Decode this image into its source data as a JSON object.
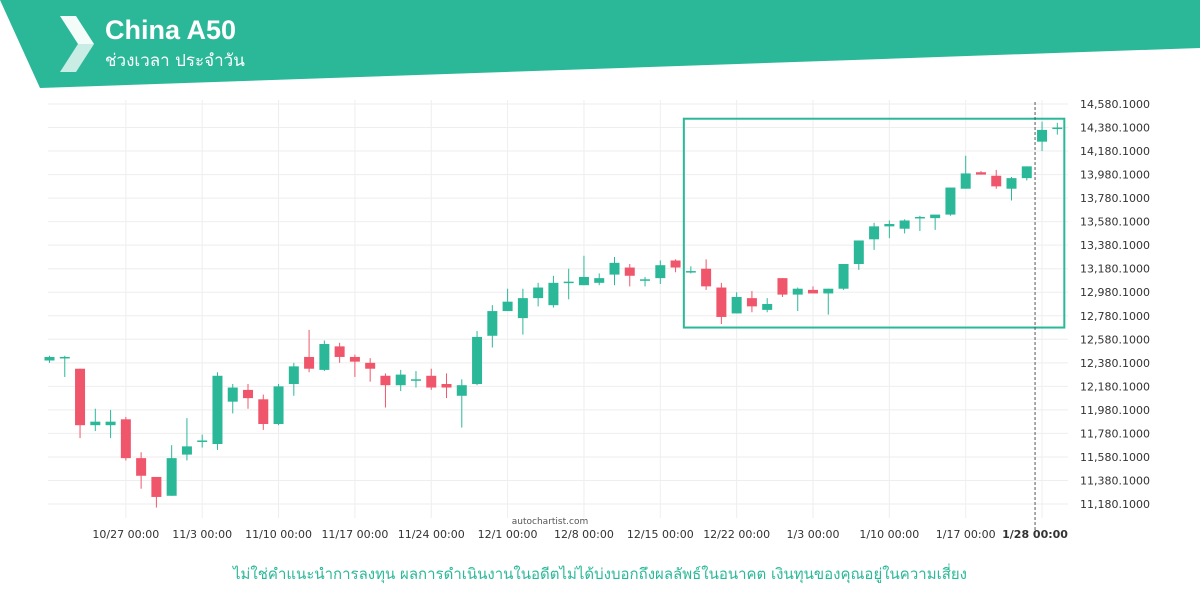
{
  "header": {
    "title": "China A50",
    "subtitle": "ช่วงเวลา ประจำวัน",
    "logo_icon": "autochartist-logo-icon"
  },
  "disclaimer": "ไม่ใช่คำแนะนำการลงทุน ผลการดำเนินงานในอดีตไม่ได้บ่งบอกถึงผลลัพธ์ในอนาคต เงินทุนของคุณอยู่ในความเสี่ยง",
  "watermark": "autochartist.com",
  "colors": {
    "accent": "#2bb899",
    "up": "#2bb899",
    "down": "#f0566b",
    "grid": "#eeeeee",
    "pattern_box": "#2bb899"
  },
  "chart_data": {
    "type": "candlestick",
    "x_tick_labels": [
      "10/27 00:00",
      "11/3 00:00",
      "11/10 00:00",
      "11/17 00:00",
      "11/24 00:00",
      "12/1 00:00",
      "12/8 00:00",
      "12/15 00:00",
      "12/22 00:00",
      "1/3 00:00",
      "1/10 00:00",
      "1/17 00:00",
      "1/28 00:00"
    ],
    "x_tick_bar_index": [
      5,
      10,
      15,
      20,
      25,
      30,
      35,
      40,
      45,
      50,
      55,
      60,
      65
    ],
    "highlighted_x_tick": "1/28 00:00",
    "y_tick_labels": [
      "14,580.1000",
      "14,380.1000",
      "14,180.1000",
      "13,980.1000",
      "13,780.1000",
      "13,580.1000",
      "13,380.1000",
      "13,180.1000",
      "12,980.1000",
      "12,780.1000",
      "12,580.1000",
      "12,380.1000",
      "12,180.1000",
      "11,980.1000",
      "11,780.1000",
      "11,580.1000",
      "11,380.1000",
      "11,180.1000"
    ],
    "ylim": [
      11120,
      14600
    ],
    "current_bar_index": 65,
    "pattern_box": {
      "bar_start": 42,
      "bar_end": 66,
      "price_low": 12680,
      "price_high": 14455
    },
    "candles": [
      {
        "o": 12400,
        "h": 12440,
        "l": 12380,
        "c": 12430
      },
      {
        "o": 12430,
        "h": 12440,
        "l": 12260,
        "c": 12430
      },
      {
        "o": 12330,
        "h": 12330,
        "l": 11740,
        "c": 11850
      },
      {
        "o": 11850,
        "h": 11990,
        "l": 11800,
        "c": 11880
      },
      {
        "o": 11850,
        "h": 11980,
        "l": 11740,
        "c": 11880
      },
      {
        "o": 11900,
        "h": 11920,
        "l": 11550,
        "c": 11570
      },
      {
        "o": 11570,
        "h": 11620,
        "l": 11310,
        "c": 11420
      },
      {
        "o": 11410,
        "h": 11410,
        "l": 11150,
        "c": 11240
      },
      {
        "o": 11250,
        "h": 11680,
        "l": 11250,
        "c": 11570
      },
      {
        "o": 11600,
        "h": 11910,
        "l": 11550,
        "c": 11670
      },
      {
        "o": 11720,
        "h": 11770,
        "l": 11660,
        "c": 11720
      },
      {
        "o": 11690,
        "h": 12300,
        "l": 11640,
        "c": 12270
      },
      {
        "o": 12050,
        "h": 12200,
        "l": 11950,
        "c": 12170
      },
      {
        "o": 12150,
        "h": 12200,
        "l": 11990,
        "c": 12080
      },
      {
        "o": 12070,
        "h": 12110,
        "l": 11810,
        "c": 11860
      },
      {
        "o": 11860,
        "h": 12200,
        "l": 11850,
        "c": 12180
      },
      {
        "o": 12200,
        "h": 12380,
        "l": 12100,
        "c": 12350
      },
      {
        "o": 12430,
        "h": 12660,
        "l": 12300,
        "c": 12330
      },
      {
        "o": 12320,
        "h": 12570,
        "l": 12310,
        "c": 12540
      },
      {
        "o": 12520,
        "h": 12550,
        "l": 12380,
        "c": 12430
      },
      {
        "o": 12430,
        "h": 12450,
        "l": 12260,
        "c": 12390
      },
      {
        "o": 12380,
        "h": 12420,
        "l": 12220,
        "c": 12330
      },
      {
        "o": 12270,
        "h": 12290,
        "l": 12000,
        "c": 12190
      },
      {
        "o": 12190,
        "h": 12320,
        "l": 12140,
        "c": 12280
      },
      {
        "o": 12240,
        "h": 12310,
        "l": 12170,
        "c": 12240
      },
      {
        "o": 12270,
        "h": 12330,
        "l": 12150,
        "c": 12170
      },
      {
        "o": 12200,
        "h": 12290,
        "l": 12080,
        "c": 12170
      },
      {
        "o": 12100,
        "h": 12240,
        "l": 11830,
        "c": 12190
      },
      {
        "o": 12200,
        "h": 12650,
        "l": 12190,
        "c": 12600
      },
      {
        "o": 12610,
        "h": 12870,
        "l": 12510,
        "c": 12820
      },
      {
        "o": 12820,
        "h": 13010,
        "l": 12820,
        "c": 12900
      },
      {
        "o": 12760,
        "h": 13010,
        "l": 12620,
        "c": 12930
      },
      {
        "o": 12930,
        "h": 13060,
        "l": 12860,
        "c": 13020
      },
      {
        "o": 12870,
        "h": 13120,
        "l": 12850,
        "c": 13060
      },
      {
        "o": 13070,
        "h": 13180,
        "l": 12920,
        "c": 13070
      },
      {
        "o": 13040,
        "h": 13290,
        "l": 13040,
        "c": 13110
      },
      {
        "o": 13060,
        "h": 13140,
        "l": 13040,
        "c": 13100
      },
      {
        "o": 13130,
        "h": 13280,
        "l": 13040,
        "c": 13230
      },
      {
        "o": 13190,
        "h": 13220,
        "l": 13030,
        "c": 13120
      },
      {
        "o": 13080,
        "h": 13110,
        "l": 13030,
        "c": 13090
      },
      {
        "o": 13100,
        "h": 13250,
        "l": 13050,
        "c": 13210
      },
      {
        "o": 13250,
        "h": 13260,
        "l": 13150,
        "c": 13190
      },
      {
        "o": 13160,
        "h": 13200,
        "l": 13140,
        "c": 13160
      },
      {
        "o": 13180,
        "h": 13260,
        "l": 13000,
        "c": 13030
      },
      {
        "o": 13020,
        "h": 13060,
        "l": 12710,
        "c": 12770
      },
      {
        "o": 12800,
        "h": 12980,
        "l": 12800,
        "c": 12940
      },
      {
        "o": 12930,
        "h": 12990,
        "l": 12810,
        "c": 12860
      },
      {
        "o": 12830,
        "h": 12930,
        "l": 12810,
        "c": 12880
      },
      {
        "o": 13100,
        "h": 13100,
        "l": 12940,
        "c": 12960
      },
      {
        "o": 12960,
        "h": 13020,
        "l": 12820,
        "c": 13010
      },
      {
        "o": 13000,
        "h": 13030,
        "l": 12980,
        "c": 12970
      },
      {
        "o": 12970,
        "h": 13010,
        "l": 12790,
        "c": 13010
      },
      {
        "o": 13010,
        "h": 13220,
        "l": 13000,
        "c": 13220
      },
      {
        "o": 13220,
        "h": 13410,
        "l": 13170,
        "c": 13420
      },
      {
        "o": 13430,
        "h": 13570,
        "l": 13340,
        "c": 13540
      },
      {
        "o": 13540,
        "h": 13590,
        "l": 13440,
        "c": 13560
      },
      {
        "o": 13520,
        "h": 13600,
        "l": 13480,
        "c": 13590
      },
      {
        "o": 13620,
        "h": 13630,
        "l": 13500,
        "c": 13620
      },
      {
        "o": 13610,
        "h": 13620,
        "l": 13510,
        "c": 13640
      },
      {
        "o": 13640,
        "h": 13870,
        "l": 13630,
        "c": 13870
      },
      {
        "o": 13860,
        "h": 14140,
        "l": 13860,
        "c": 13990
      },
      {
        "o": 14000,
        "h": 14010,
        "l": 13980,
        "c": 13980
      },
      {
        "o": 13970,
        "h": 14020,
        "l": 13860,
        "c": 13880
      },
      {
        "o": 13860,
        "h": 13960,
        "l": 13760,
        "c": 13950
      },
      {
        "o": 13950,
        "h": 14050,
        "l": 13930,
        "c": 14050
      },
      {
        "o": 14260,
        "h": 14430,
        "l": 14180,
        "c": 14360
      },
      {
        "o": 14380,
        "h": 14420,
        "l": 14320,
        "c": 14380
      }
    ]
  }
}
